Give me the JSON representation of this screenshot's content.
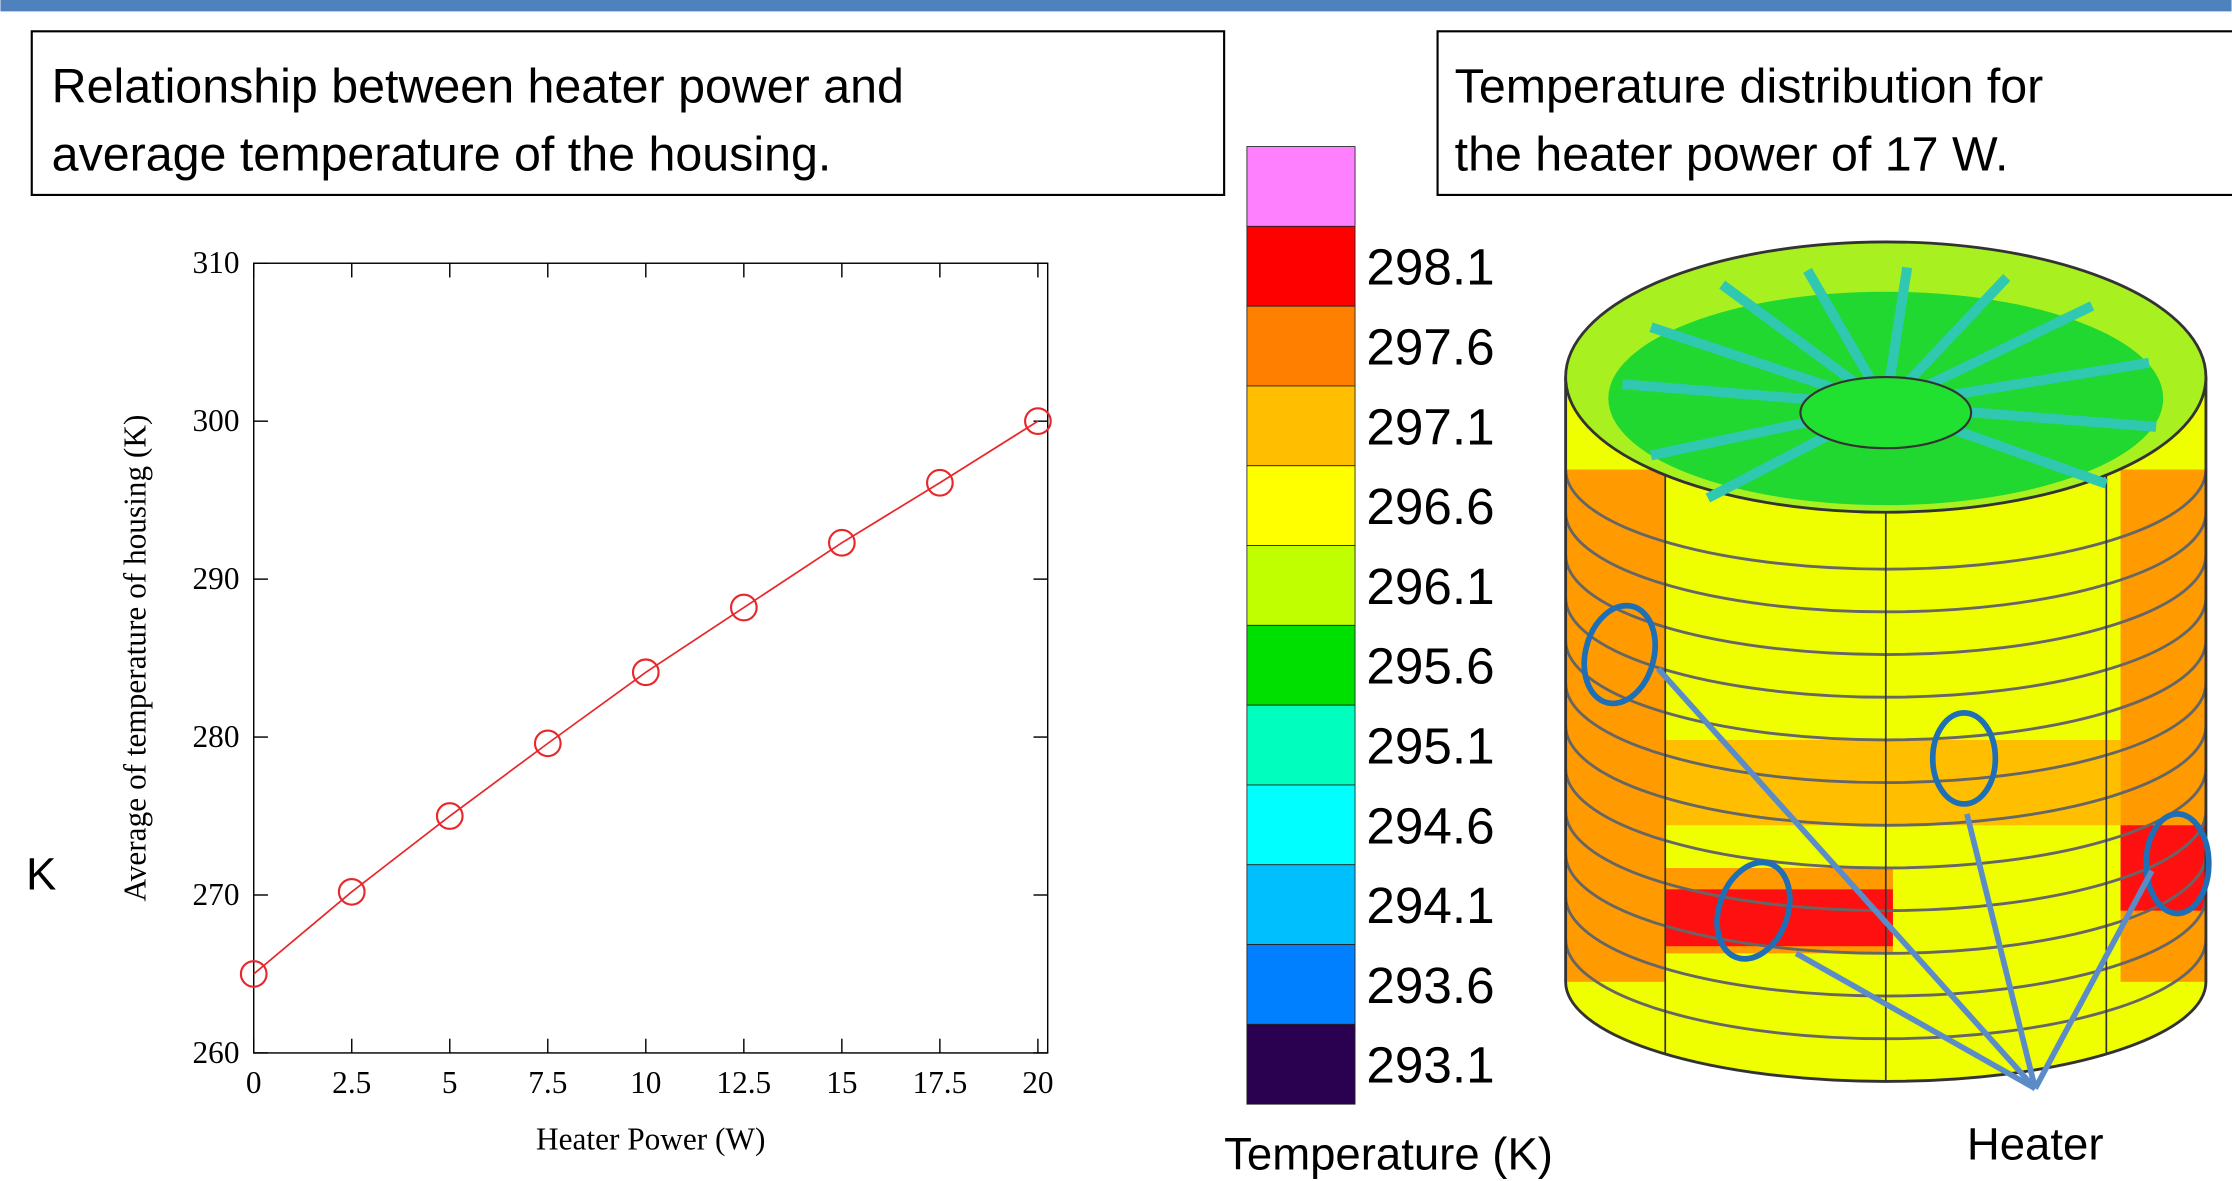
{
  "left_caption": [
    "Relationship between heater power and",
    "average temperature of the housing."
  ],
  "right_caption": [
    "Temperature distribution for",
    "the heater power of 17 W."
  ],
  "unit_label": "K",
  "heater_label": "Heater",
  "chart_data": {
    "type": "line",
    "x_label": "Heater Power (W)",
    "y_label": "Average of temperature of housing (K)",
    "x": [
      0,
      2.5,
      5,
      7.5,
      10,
      12.5,
      15,
      17.5,
      20
    ],
    "series": [
      {
        "color": "#e8272b",
        "values": [
          265,
          270.2,
          275,
          279.6,
          284.1,
          288.2,
          292.3,
          296.1,
          300
        ]
      }
    ],
    "xlim": [
      0,
      20.25
    ],
    "xticks": [
      0,
      2.5,
      5,
      7.5,
      10,
      12.5,
      15,
      17.5,
      20
    ],
    "ylim": [
      260,
      310
    ],
    "yticks": [
      260,
      270,
      280,
      290,
      300,
      310
    ]
  },
  "colorbar": {
    "title": "Temperature (K)",
    "levels": [
      298.1,
      297.6,
      297.1,
      296.6,
      296.1,
      295.6,
      295.1,
      294.6,
      294.1,
      293.6,
      293.1
    ],
    "colors": [
      "#ff80ff",
      "#ff0000",
      "#ff8000",
      "#ffbf00",
      "#ffff00",
      "#bfff00",
      "#00e000",
      "#00ffbf",
      "#00ffff",
      "#00bfff",
      "#0080ff",
      "#2a0050"
    ]
  }
}
